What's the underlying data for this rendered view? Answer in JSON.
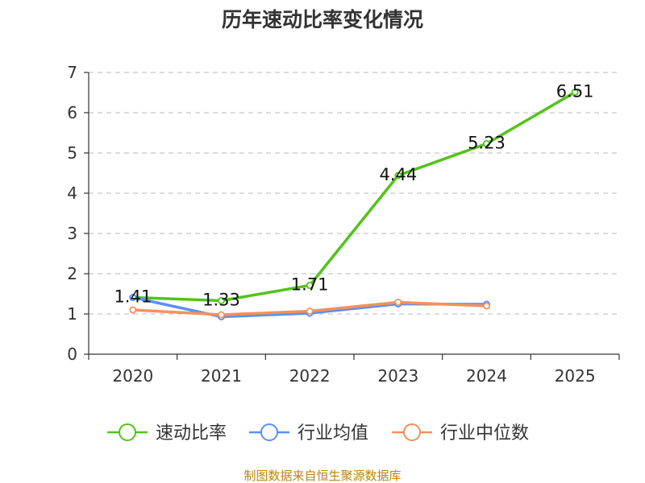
{
  "chart_data": {
    "type": "line",
    "title": "历年速动比率变化情况",
    "categories": [
      "2020",
      "2021",
      "2022",
      "2023",
      "2024",
      "2025"
    ],
    "ylim": [
      0,
      7
    ],
    "yticks": [
      0,
      1,
      2,
      3,
      4,
      5,
      6,
      7
    ],
    "grid": true,
    "legend_position": "bottom",
    "series": [
      {
        "name": "速动比率",
        "color": "#52c41a",
        "values": [
          1.41,
          1.33,
          1.71,
          4.44,
          5.23,
          6.51
        ],
        "show_labels": true
      },
      {
        "name": "行业均值",
        "color": "#5b8ff9",
        "values": [
          1.41,
          0.93,
          1.02,
          1.25,
          1.24,
          null
        ],
        "show_labels": false
      },
      {
        "name": "行业中位数",
        "color": "#f6915b",
        "values": [
          1.1,
          0.98,
          1.07,
          1.29,
          1.2,
          null
        ],
        "show_labels": false
      }
    ],
    "source": "制图数据来自恒生聚源数据库"
  }
}
